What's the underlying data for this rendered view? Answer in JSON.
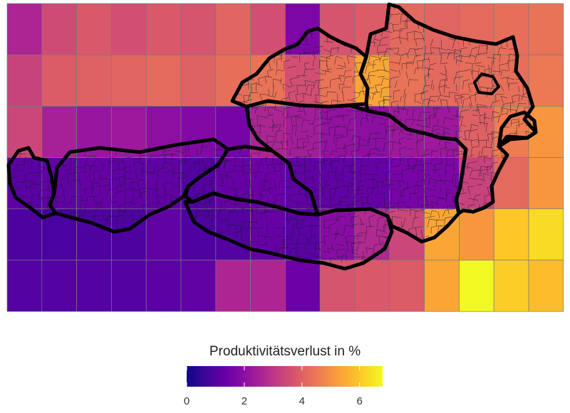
{
  "legend": {
    "title": "Produktivitätsverlust in %",
    "ticks": [
      0,
      2,
      4,
      6
    ],
    "range": [
      0,
      6.8
    ],
    "palette": "plasma"
  },
  "chart_data": {
    "type": "heatmap",
    "title": "",
    "xlabel": "",
    "ylabel": "",
    "grid_cols": 16,
    "grid_rows": 6,
    "colorbar_label": "Produktivitätsverlust in %",
    "colorbar_range": [
      0,
      6.8
    ],
    "values": [
      [
        2.6,
        3.5,
        3.8,
        3.6,
        3.8,
        3.7,
        4.1,
        3.6,
        1.7,
        3.7,
        3.9,
        4.2,
        4.1,
        4.2,
        4.3,
        4.4
      ],
      [
        3.3,
        3.9,
        4.0,
        4.1,
        4.2,
        4.0,
        4.3,
        4.4,
        3.6,
        4.4,
        5.4,
        4.4,
        4.2,
        4.3,
        4.3,
        4.5
      ],
      [
        3.4,
        2.5,
        2.2,
        2.3,
        2.0,
        1.8,
        1.6,
        2.6,
        2.4,
        2.1,
        2.0,
        2.3,
        2.3,
        4.0,
        4.6,
        5.1
      ],
      [
        1.1,
        1.2,
        1.3,
        1.2,
        1.2,
        1.0,
        1.3,
        1.4,
        1.2,
        1.2,
        1.3,
        1.6,
        1.7,
        3.3,
        4.2,
        5.1
      ],
      [
        0.9,
        0.8,
        0.9,
        0.9,
        1.2,
        0.9,
        1.0,
        1.3,
        1.1,
        1.9,
        2.7,
        3.4,
        5.4,
        5.1,
        6.0,
        6.3
      ],
      [
        1.0,
        1.0,
        1.0,
        1.0,
        1.1,
        1.2,
        2.6,
        2.6,
        1.4,
        3.7,
        3.8,
        3.9,
        5.4,
        6.8,
        6.1,
        5.8
      ]
    ]
  }
}
